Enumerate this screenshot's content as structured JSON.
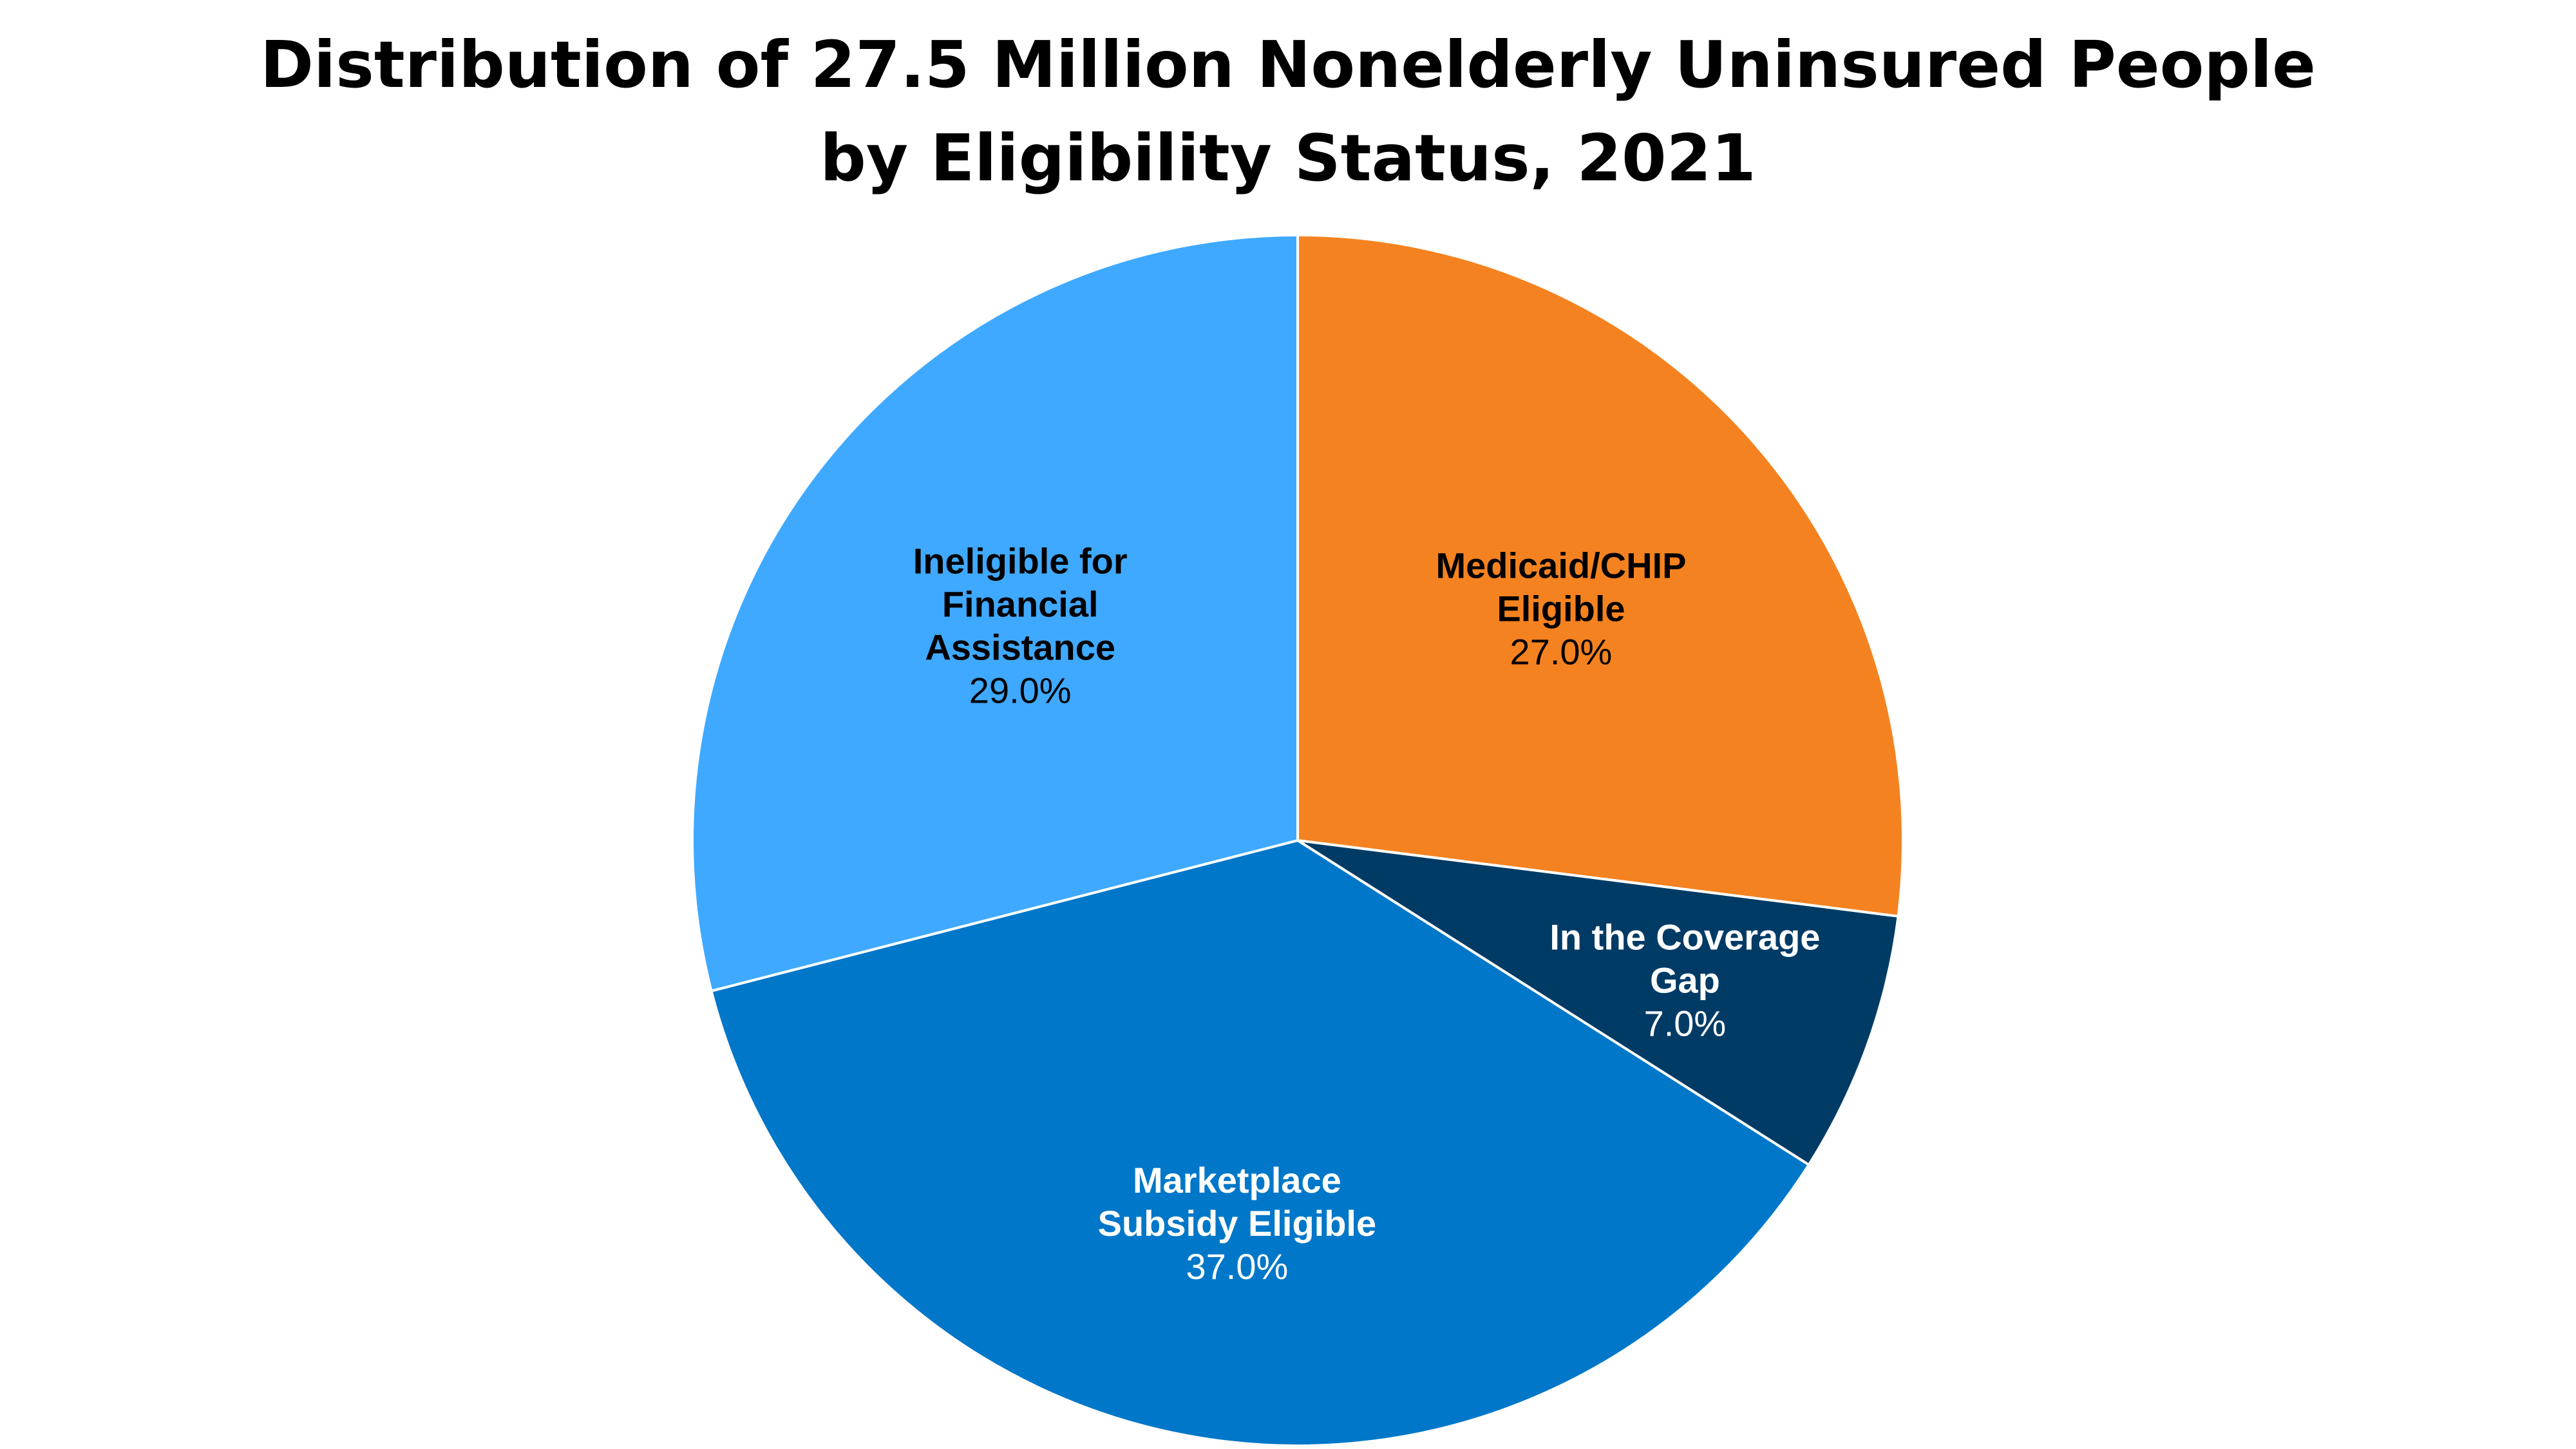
{
  "chart_data": {
    "type": "pie",
    "title": "Distribution of 27.5 Million Nonelderly Uninsured People by Eligibility Status, 2021",
    "title_lines": [
      "Distribution of 27.5 Million Nonelderly Uninsured People",
      "by Eligibility Status, 2021"
    ],
    "legend": "none",
    "slices": [
      {
        "label": "Medicaid/CHIP Eligible",
        "label_lines": [
          "Medicaid/CHIP",
          "Eligible"
        ],
        "value": 27.0,
        "value_label": "27.0%",
        "color": "#F58220",
        "text_color": "#000000"
      },
      {
        "label": "In the Coverage Gap",
        "label_lines": [
          "In the Coverage",
          "Gap"
        ],
        "value": 7.0,
        "value_label": "7.0%",
        "color": "#003B66",
        "text_color": "#ffffff"
      },
      {
        "label": "Marketplace Subsidy Eligible",
        "label_lines": [
          "Marketplace",
          "Subsidy Eligible"
        ],
        "value": 37.0,
        "value_label": "37.0%",
        "color": "#0077C8",
        "text_color": "#ffffff"
      },
      {
        "label": "Ineligible for Financial Assistance",
        "label_lines": [
          "Ineligible for",
          "Financial",
          "Assistance"
        ],
        "value": 29.0,
        "value_label": "29.0%",
        "color": "#3FA9FF",
        "text_color": "#000000"
      }
    ]
  }
}
